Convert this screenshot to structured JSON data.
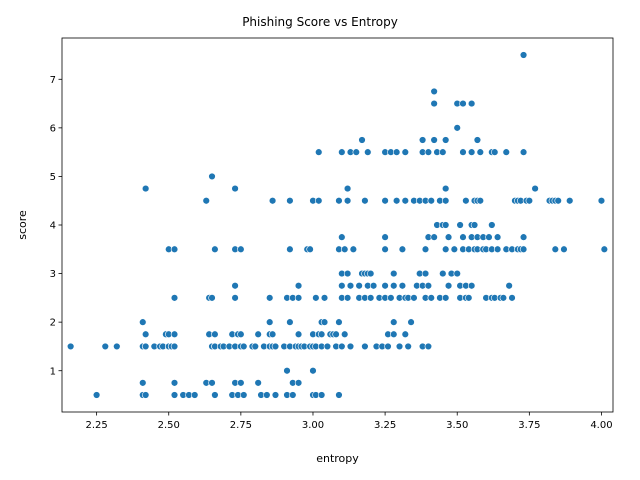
{
  "chart_data": {
    "type": "scatter",
    "title": "Phishing Score vs Entropy",
    "xlabel": "entropy",
    "ylabel": "score",
    "xlim": [
      2.13,
      4.04
    ],
    "ylim": [
      0.15,
      7.85
    ],
    "xticks": [
      "2.25",
      "2.50",
      "2.75",
      "3.00",
      "3.25",
      "3.50",
      "3.75",
      "4.00"
    ],
    "yticks": [
      "1",
      "2",
      "3",
      "4",
      "5",
      "6",
      "7"
    ],
    "grid": false,
    "marker_color": "#1f77b4",
    "series": [
      {
        "x": [
          2.16,
          2.25,
          2.28,
          2.32,
          2.41,
          2.41,
          2.41,
          2.41,
          2.42,
          2.42,
          2.42,
          2.42,
          2.42,
          2.45,
          2.47,
          2.48,
          2.49,
          2.5,
          2.5,
          2.5,
          2.5,
          2.51,
          2.51,
          2.52,
          2.52,
          2.52,
          2.52,
          2.52,
          2.52,
          2.55,
          2.57,
          2.59,
          2.63,
          2.63,
          2.64,
          2.64,
          2.65,
          2.65,
          2.65,
          2.65,
          2.66,
          2.66,
          2.66,
          2.66,
          2.66,
          2.68,
          2.69,
          2.71,
          2.72,
          2.72,
          2.73,
          2.73,
          2.73,
          2.73,
          2.73,
          2.73,
          2.74,
          2.74,
          2.75,
          2.75,
          2.75,
          2.75,
          2.76,
          2.76,
          2.79,
          2.8,
          2.81,
          2.81,
          2.82,
          2.83,
          2.84,
          2.85,
          2.85,
          2.85,
          2.85,
          2.86,
          2.86,
          2.86,
          2.87,
          2.87,
          2.9,
          2.91,
          2.91,
          2.91,
          2.92,
          2.92,
          2.92,
          2.92,
          2.93,
          2.93,
          2.93,
          2.94,
          2.95,
          2.95,
          2.95,
          2.95,
          2.95,
          2.96,
          2.97,
          2.98,
          2.99,
          2.99,
          3.0,
          3.0,
          3.0,
          3.0,
          3.0,
          3.01,
          3.01,
          3.01,
          3.02,
          3.02,
          3.02,
          3.03,
          3.03,
          3.03,
          3.03,
          3.04,
          3.04,
          3.05,
          3.06,
          3.07,
          3.08,
          3.08,
          3.09,
          3.09,
          3.09,
          3.09,
          3.1,
          3.1,
          3.1,
          3.1,
          3.1,
          3.1,
          3.11,
          3.11,
          3.12,
          3.12,
          3.12,
          3.12,
          3.13,
          3.13,
          3.13,
          3.14,
          3.15,
          3.16,
          3.16,
          3.17,
          3.17,
          3.18,
          3.18,
          3.18,
          3.18,
          3.19,
          3.19,
          3.19,
          3.2,
          3.2,
          3.21,
          3.22,
          3.23,
          3.24,
          3.25,
          3.25,
          3.25,
          3.25,
          3.25,
          3.25,
          3.26,
          3.26,
          3.27,
          3.27,
          3.28,
          3.28,
          3.28,
          3.28,
          3.29,
          3.29,
          3.3,
          3.3,
          3.31,
          3.31,
          3.32,
          3.32,
          3.32,
          3.32,
          3.33,
          3.33,
          3.34,
          3.35,
          3.35,
          3.36,
          3.37,
          3.37,
          3.38,
          3.38,
          3.38,
          3.38,
          3.39,
          3.39,
          3.39,
          3.39,
          3.4,
          3.4,
          3.4,
          3.4,
          3.41,
          3.41,
          3.42,
          3.42,
          3.42,
          3.42,
          3.43,
          3.43,
          3.44,
          3.44,
          3.45,
          3.45,
          3.45,
          3.46,
          3.46,
          3.46,
          3.46,
          3.46,
          3.46,
          3.47,
          3.47,
          3.48,
          3.49,
          3.5,
          3.5,
          3.5,
          3.51,
          3.51,
          3.51,
          3.52,
          3.52,
          3.52,
          3.52,
          3.53,
          3.53,
          3.53,
          3.54,
          3.54,
          3.55,
          3.55,
          3.55,
          3.55,
          3.55,
          3.56,
          3.56,
          3.56,
          3.57,
          3.57,
          3.57,
          3.57,
          3.58,
          3.58,
          3.59,
          3.59,
          3.6,
          3.6,
          3.61,
          3.62,
          3.62,
          3.62,
          3.62,
          3.63,
          3.63,
          3.64,
          3.64,
          3.65,
          3.66,
          3.67,
          3.67,
          3.68,
          3.69,
          3.69,
          3.7,
          3.71,
          3.71,
          3.72,
          3.72,
          3.73,
          3.73,
          3.73,
          3.73,
          3.74,
          3.75,
          3.77,
          3.82,
          3.83,
          3.84,
          3.84,
          3.85,
          3.87,
          3.89,
          4.0,
          4.01
        ],
        "y": [
          1.5,
          0.5,
          1.5,
          1.5,
          2.0,
          1.5,
          0.75,
          0.5,
          1.75,
          1.5,
          0.5,
          4.75,
          1.5,
          1.5,
          1.5,
          1.5,
          1.75,
          3.5,
          1.75,
          1.5,
          1.5,
          1.5,
          1.5,
          3.5,
          2.5,
          1.75,
          1.5,
          0.75,
          0.5,
          0.5,
          0.5,
          0.5,
          4.5,
          0.75,
          2.5,
          1.75,
          5.0,
          2.5,
          1.5,
          0.75,
          1.75,
          1.5,
          0.5,
          3.5,
          1.5,
          1.5,
          1.5,
          1.5,
          1.75,
          0.5,
          4.75,
          3.5,
          2.75,
          2.5,
          1.5,
          0.75,
          1.75,
          0.5,
          3.5,
          1.75,
          1.5,
          0.75,
          1.5,
          0.5,
          1.5,
          1.5,
          1.75,
          0.75,
          0.5,
          1.5,
          0.5,
          2.5,
          2.0,
          1.75,
          1.5,
          4.5,
          1.75,
          1.5,
          1.5,
          0.5,
          1.5,
          2.5,
          1.0,
          0.5,
          4.5,
          3.5,
          2.0,
          1.5,
          2.5,
          0.75,
          0.5,
          1.5,
          2.75,
          2.5,
          1.75,
          1.5,
          0.75,
          1.5,
          1.5,
          3.5,
          3.5,
          1.5,
          4.5,
          1.75,
          1.5,
          1.0,
          0.5,
          2.5,
          1.5,
          0.5,
          5.5,
          4.5,
          1.75,
          2.0,
          1.75,
          1.5,
          0.5,
          2.5,
          2.0,
          1.5,
          1.75,
          1.75,
          1.75,
          1.5,
          4.5,
          3.5,
          2.0,
          0.5,
          5.5,
          3.75,
          3.0,
          2.75,
          2.5,
          1.5,
          3.5,
          1.75,
          4.75,
          4.5,
          3.0,
          2.5,
          5.5,
          2.75,
          1.5,
          3.5,
          5.5,
          2.75,
          2.5,
          5.75,
          3.0,
          4.5,
          3.0,
          2.5,
          1.5,
          5.5,
          3.0,
          2.75,
          3.0,
          2.5,
          2.75,
          1.5,
          2.5,
          1.5,
          5.5,
          4.5,
          3.75,
          3.5,
          2.75,
          2.5,
          1.75,
          1.5,
          5.5,
          2.5,
          3.0,
          2.75,
          2.0,
          1.75,
          5.5,
          4.5,
          2.5,
          1.5,
          3.5,
          2.75,
          5.5,
          4.5,
          2.5,
          1.75,
          2.5,
          1.5,
          2.0,
          4.5,
          2.5,
          2.75,
          4.5,
          3.0,
          5.75,
          5.5,
          2.75,
          1.5,
          4.5,
          3.5,
          3.0,
          2.5,
          5.5,
          3.75,
          2.75,
          1.5,
          4.5,
          2.5,
          6.75,
          6.5,
          5.75,
          3.75,
          5.5,
          4.0,
          4.5,
          2.5,
          5.5,
          4.0,
          3.0,
          5.75,
          4.75,
          4.5,
          4.0,
          3.5,
          2.5,
          3.75,
          2.75,
          3.0,
          3.5,
          6.5,
          6.0,
          3.0,
          4.0,
          2.75,
          2.5,
          6.5,
          5.5,
          3.75,
          3.5,
          4.5,
          2.75,
          2.5,
          3.5,
          2.5,
          6.5,
          5.5,
          4.0,
          3.75,
          2.75,
          4.5,
          4.0,
          3.5,
          5.75,
          4.5,
          3.75,
          3.5,
          5.5,
          4.5,
          3.75,
          3.5,
          3.5,
          2.5,
          3.75,
          5.5,
          4.0,
          3.5,
          2.5,
          5.5,
          2.5,
          3.75,
          3.5,
          2.5,
          2.5,
          5.5,
          3.5,
          2.75,
          3.5,
          2.5,
          4.5,
          4.5,
          3.5,
          4.5,
          3.5,
          7.5,
          5.5,
          3.75,
          3.5,
          4.5,
          4.5,
          4.75,
          4.5,
          4.5,
          4.5,
          3.5,
          4.5,
          3.5,
          4.5,
          4.5,
          3.5
        ]
      }
    ]
  }
}
